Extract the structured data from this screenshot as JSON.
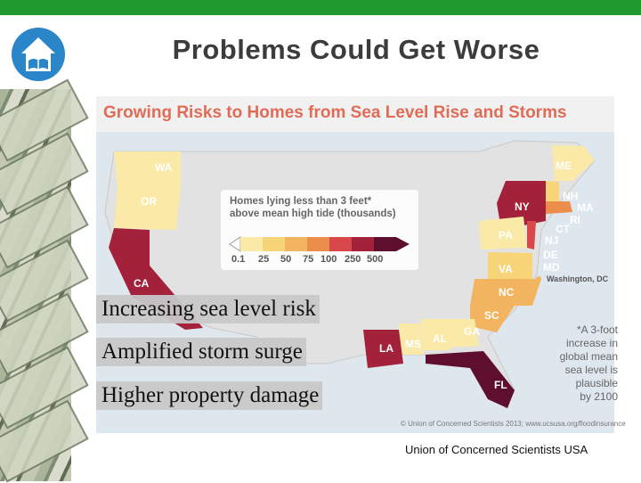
{
  "slide": {
    "title": "Problems Could Get Worse",
    "source": "Union of Concerned Scientists USA"
  },
  "map": {
    "title": "Growing Risks to Homes from Sea Level Rise and Storms",
    "legend": {
      "title_line1": "Homes lying less than 3 feet*",
      "title_line2": "above mean high tide (thousands)",
      "ticks": [
        "0.1",
        "25",
        "50",
        "75",
        "100",
        "250",
        "500"
      ],
      "colors": [
        "#fbe9a8",
        "#f8d479",
        "#f2b45e",
        "#ec8d4b",
        "#d8484b",
        "#a3213a",
        "#5d0f2d"
      ]
    },
    "states": [
      "WA",
      "OR",
      "CA",
      "ME",
      "NH",
      "MA",
      "RI",
      "CT",
      "NY",
      "NJ",
      "PA",
      "DE",
      "MD",
      "VA",
      "NC",
      "SC",
      "GA",
      "AL",
      "MS",
      "LA",
      "FL"
    ],
    "washington_label": "Washington, DC",
    "footnote": [
      "*A 3-foot",
      "increase in",
      "global mean",
      "sea level is",
      "plausible",
      "by 2100"
    ],
    "credit": "© Union of Concerned Scientists 2013; www.ucsusa.org/floodinsurance"
  },
  "captions": [
    "Increasing sea level risk",
    "Amplified storm surge",
    "Higher property damage"
  ],
  "icons": {
    "logo": "house-book-icon"
  }
}
